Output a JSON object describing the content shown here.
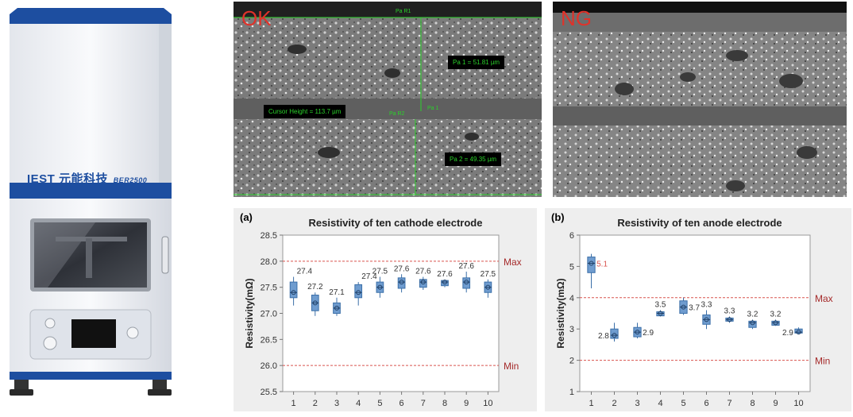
{
  "machine": {
    "brand": "IEST 元能科技",
    "model": "BER2500"
  },
  "micrographs": {
    "ok": {
      "label": "OK",
      "top_marker": "Pa R1",
      "pa1": "Pa 1 = 51.81 µm",
      "cursor": "Cursor Height = 113.7 µm",
      "pa_r2": "Pa R2",
      "pa_1_tag": "Pa 1",
      "pa2": "Pa 2 = 49.35 µm"
    },
    "ng": {
      "label": "NG"
    }
  },
  "chart_data": [
    {
      "type": "box",
      "panel_label": "(a)",
      "title": "Resistivity of ten cathode electrode",
      "ylabel": "Resistivity(mΩ)",
      "xlabel": "",
      "categories": [
        "1",
        "2",
        "3",
        "4",
        "5",
        "6",
        "7",
        "8",
        "9",
        "10"
      ],
      "ylim": [
        25.5,
        28.5
      ],
      "yticks": [
        "25.5",
        "26.0",
        "26.5",
        "27.0",
        "27.5",
        "28.0",
        "28.5"
      ],
      "limits": {
        "max": 28.0,
        "min": 26.0,
        "max_label": "Max",
        "min_label": "Min"
      },
      "values": [
        27.4,
        27.2,
        27.1,
        27.4,
        27.5,
        27.6,
        27.6,
        27.6,
        27.6,
        27.5
      ],
      "value_labels": [
        "27.4",
        "27.2",
        "27.1",
        "27.4",
        "27.5",
        "27.6",
        "27.6",
        "27.6",
        "27.6",
        "27.5"
      ],
      "boxes": [
        {
          "lo": 27.15,
          "q1": 27.3,
          "q3": 27.6,
          "hi": 27.7
        },
        {
          "lo": 26.95,
          "q1": 27.05,
          "q3": 27.35,
          "hi": 27.4
        },
        {
          "lo": 26.95,
          "q1": 27.0,
          "q3": 27.2,
          "hi": 27.3
        },
        {
          "lo": 27.15,
          "q1": 27.3,
          "q3": 27.55,
          "hi": 27.6
        },
        {
          "lo": 27.3,
          "q1": 27.4,
          "q3": 27.6,
          "hi": 27.7
        },
        {
          "lo": 27.4,
          "q1": 27.48,
          "q3": 27.68,
          "hi": 27.75
        },
        {
          "lo": 27.45,
          "q1": 27.5,
          "q3": 27.65,
          "hi": 27.7
        },
        {
          "lo": 27.5,
          "q1": 27.53,
          "q3": 27.63,
          "hi": 27.65
        },
        {
          "lo": 27.4,
          "q1": 27.48,
          "q3": 27.68,
          "hi": 27.8
        },
        {
          "lo": 27.3,
          "q1": 27.4,
          "q3": 27.6,
          "hi": 27.65
        }
      ]
    },
    {
      "type": "box",
      "panel_label": "(b)",
      "title": "Resistivity of ten anode electrode",
      "ylabel": "Resistivity(mΩ)",
      "xlabel": "",
      "categories": [
        "1",
        "2",
        "3",
        "4",
        "5",
        "6",
        "7",
        "8",
        "9",
        "10"
      ],
      "ylim": [
        1,
        6
      ],
      "yticks": [
        "1",
        "2",
        "3",
        "4",
        "5",
        "6"
      ],
      "limits": {
        "max": 4,
        "min": 2,
        "max_label": "Max",
        "min_label": "Min"
      },
      "values": [
        5.1,
        2.8,
        2.9,
        3.5,
        3.7,
        3.3,
        3.3,
        3.2,
        3.2,
        2.9
      ],
      "value_labels": [
        "5.1",
        "2.8",
        "2.9",
        "3.5",
        "3.7",
        "3.3",
        "3.3",
        "3.2",
        "3.2",
        "2.9"
      ],
      "boxes": [
        {
          "lo": 4.3,
          "q1": 4.8,
          "q3": 5.3,
          "hi": 5.4
        },
        {
          "lo": 2.6,
          "q1": 2.7,
          "q3": 3.0,
          "hi": 3.2
        },
        {
          "lo": 2.7,
          "q1": 2.75,
          "q3": 3.05,
          "hi": 3.2
        },
        {
          "lo": 3.4,
          "q1": 3.42,
          "q3": 3.55,
          "hi": 3.6
        },
        {
          "lo": 3.45,
          "q1": 3.5,
          "q3": 3.9,
          "hi": 4.0
        },
        {
          "lo": 3.0,
          "q1": 3.15,
          "q3": 3.45,
          "hi": 3.6
        },
        {
          "lo": 3.2,
          "q1": 3.25,
          "q3": 3.35,
          "hi": 3.4
        },
        {
          "lo": 3.0,
          "q1": 3.05,
          "q3": 3.25,
          "hi": 3.3
        },
        {
          "lo": 3.1,
          "q1": 3.12,
          "q3": 3.25,
          "hi": 3.3
        },
        {
          "lo": 2.85,
          "q1": 2.87,
          "q3": 3.0,
          "hi": 3.05
        }
      ]
    }
  ],
  "colors": {
    "box_fill": "#6f9ccf",
    "box_stroke": "#3b6fa8",
    "limit_line": "#d9534f",
    "limit_text": "#a52a2a",
    "highlight_value": "#d9534f",
    "accent_blue": "#1d4ea0",
    "ok_red": "#e0322a"
  }
}
